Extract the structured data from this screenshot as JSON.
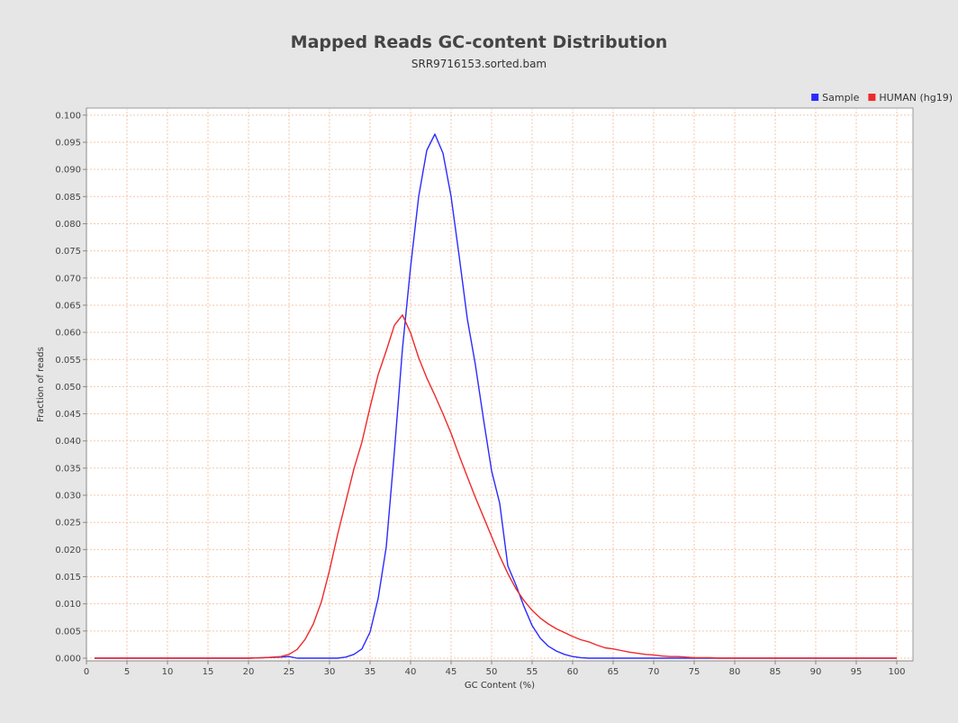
{
  "chart_data": {
    "type": "line",
    "title": "Mapped Reads GC-content Distribution",
    "subtitle": "SRR9716153.sorted.bam",
    "xlabel": "GC Content (%)",
    "ylabel": "Fraction of reads",
    "xlim": [
      0,
      102
    ],
    "ylim": [
      -0.0005,
      0.1013
    ],
    "x_ticks": [
      0,
      5,
      10,
      15,
      20,
      25,
      30,
      35,
      40,
      45,
      50,
      55,
      60,
      65,
      70,
      75,
      80,
      85,
      90,
      95,
      100
    ],
    "y_ticks": [
      0.0,
      0.005,
      0.01,
      0.015,
      0.02,
      0.025,
      0.03,
      0.035,
      0.04,
      0.045,
      0.05,
      0.055,
      0.06,
      0.065,
      0.07,
      0.075,
      0.08,
      0.085,
      0.09,
      0.095,
      0.1
    ],
    "y_tick_labels": [
      "0.000",
      "0.005",
      "0.010",
      "0.015",
      "0.020",
      "0.025",
      "0.030",
      "0.035",
      "0.040",
      "0.045",
      "0.050",
      "0.055",
      "0.060",
      "0.065",
      "0.070",
      "0.075",
      "0.080",
      "0.085",
      "0.090",
      "0.095",
      "0.100"
    ],
    "grid": true,
    "legend_position": "top-right",
    "series": [
      {
        "name": "Sample",
        "color": "#2b2bff",
        "x": [
          1,
          10,
          20,
          24,
          25,
          26,
          30,
          31,
          32,
          33,
          34,
          35,
          36,
          37,
          38,
          39,
          40,
          41,
          42,
          43,
          44,
          45,
          46,
          47,
          48,
          49,
          50,
          51,
          52,
          53,
          54,
          55,
          56,
          57,
          58,
          59,
          60,
          61,
          62,
          65,
          70,
          80,
          90,
          100
        ],
        "y": [
          0.0,
          0.0,
          0.0,
          0.0002,
          0.0003,
          0.0,
          0.0,
          0.0,
          0.0002,
          0.0007,
          0.0017,
          0.0048,
          0.011,
          0.0205,
          0.038,
          0.057,
          0.072,
          0.085,
          0.0935,
          0.0965,
          0.093,
          0.085,
          0.074,
          0.0625,
          0.054,
          0.044,
          0.0345,
          0.0285,
          0.017,
          0.0135,
          0.0095,
          0.006,
          0.0037,
          0.0022,
          0.0013,
          0.0007,
          0.0003,
          0.0001,
          0.0,
          0.0,
          0.0,
          0.0,
          0.0,
          0.0
        ]
      },
      {
        "name": "HUMAN (hg19)",
        "color": "#ee2a2a",
        "x": [
          1,
          10,
          20,
          22,
          23,
          24,
          25,
          26,
          27,
          28,
          29,
          30,
          31,
          32,
          33,
          34,
          35,
          36,
          37,
          38,
          39,
          40,
          41,
          42,
          43,
          44,
          45,
          46,
          47,
          48,
          49,
          50,
          51,
          52,
          53,
          54,
          55,
          56,
          57,
          58,
          59,
          60,
          61,
          62,
          63,
          64,
          65,
          66,
          67,
          68,
          69,
          70,
          71,
          72,
          73,
          74,
          75,
          76,
          77,
          78,
          80,
          90,
          100
        ],
        "y": [
          0.0,
          0.0,
          0.0,
          0.0001,
          0.0002,
          0.0003,
          0.0007,
          0.0016,
          0.0035,
          0.0063,
          0.0104,
          0.0162,
          0.0228,
          0.0288,
          0.0348,
          0.0398,
          0.0462,
          0.0522,
          0.0566,
          0.0613,
          0.0632,
          0.0599,
          0.0553,
          0.0516,
          0.0484,
          0.045,
          0.0414,
          0.0373,
          0.0334,
          0.0296,
          0.026,
          0.0224,
          0.0188,
          0.0156,
          0.0128,
          0.0106,
          0.0088,
          0.0074,
          0.0063,
          0.0054,
          0.0047,
          0.004,
          0.0034,
          0.003,
          0.0024,
          0.0019,
          0.0017,
          0.0014,
          0.0011,
          0.0009,
          0.0007,
          0.0006,
          0.0004,
          0.0003,
          0.0003,
          0.0002,
          0.0001,
          0.0001,
          0.0001,
          0.0,
          0.0,
          0.0,
          0.0
        ]
      }
    ]
  }
}
